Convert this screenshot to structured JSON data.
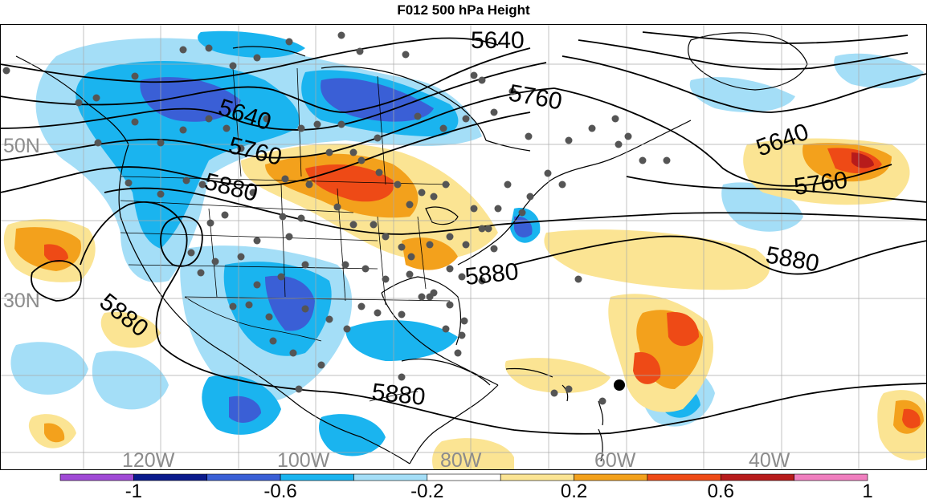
{
  "title": "F012 500 hPa Height",
  "latitude_labels": [
    "50N",
    "30N"
  ],
  "longitude_labels": [
    "120W",
    "100W",
    "80W",
    "60W",
    "40W"
  ],
  "contour_labels": [
    {
      "text": "5640",
      "id": "z5640-pacific"
    },
    {
      "text": "5640",
      "id": "z5640-canada"
    },
    {
      "text": "5640",
      "id": "z5640-atlantic"
    },
    {
      "text": "5760",
      "id": "z5760-hudson"
    },
    {
      "text": "5760",
      "id": "z5760-west"
    },
    {
      "text": "5760",
      "id": "z5760-atlantic"
    },
    {
      "text": "5880",
      "id": "z5880-west"
    },
    {
      "text": "5880",
      "id": "z5880-southeast"
    },
    {
      "text": "5880",
      "id": "z5880-atlantic"
    },
    {
      "text": "5880",
      "id": "z5880-pacific"
    },
    {
      "text": "5880",
      "id": "z5880-caribbean"
    }
  ],
  "colorbar": {
    "tick_labels": [
      "-1",
      "-0.6",
      "-0.2",
      "0.2",
      "0.6",
      "1"
    ],
    "colors": [
      "#a04ad6",
      "#0a1a8c",
      "#3a5fd6",
      "#1ab4ef",
      "#a4def7",
      "#ffffff",
      "#fbe493",
      "#f3a11c",
      "#ee4a16",
      "#b71b1b",
      "#f07fbf"
    ]
  },
  "palette": {
    "neg_strong": "#3a5fd6",
    "neg_mid": "#1ab4ef",
    "neg_weak": "#a4def7",
    "pos_weak": "#fbe493",
    "pos_mid": "#f3a11c",
    "pos_strong": "#ee4a16",
    "station_dot": "#555555"
  }
}
